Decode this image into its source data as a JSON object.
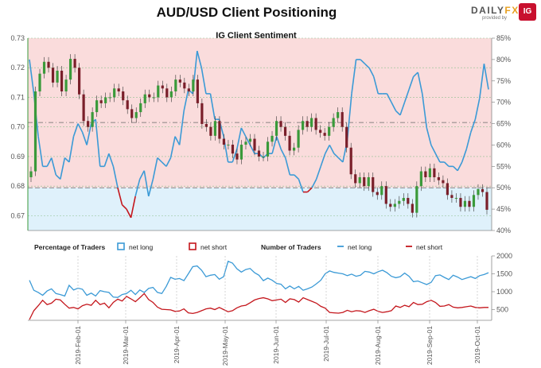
{
  "header": {
    "title": "AUD/USD Client Positioning",
    "logo_text_a": "DAILY",
    "logo_text_b": "FX",
    "logo_sub": "provided by",
    "logo_badge": "IG"
  },
  "colors": {
    "net_long": "#3b9ad6",
    "net_short": "#c4161c",
    "long_fill": "#dff1fb",
    "short_fill": "#fadcdc",
    "candle_up": "#3a9a3a",
    "candle_down": "#7a1f2a"
  },
  "chart_data": [
    {
      "type": "candlestick",
      "title": "IG Client Sentiment",
      "y_left": {
        "ticks": [
          "0.67",
          "0.68",
          "0.69",
          "0.70",
          "0.71",
          "0.72",
          "0.73"
        ],
        "range": [
          0.665,
          0.73
        ]
      },
      "y_right": {
        "ticks": [
          "40%",
          "45%",
          "50%",
          "55%",
          "60%",
          "65%",
          "70%",
          "75%",
          "80%",
          "85%"
        ],
        "range": [
          40,
          85
        ]
      },
      "x_dates": [
        "2019-Feb-01",
        "2019-Mar-01",
        "2019-Apr-01",
        "2019-May-01",
        "2019-Jun-01",
        "2019-Jul-01",
        "2019-Aug-01",
        "2019-Sep-01",
        "2019-Oct-01"
      ],
      "price_close": [
        0.685,
        0.712,
        0.718,
        0.722,
        0.72,
        0.715,
        0.719,
        0.712,
        0.716,
        0.723,
        0.72,
        0.711,
        0.702,
        0.7,
        0.705,
        0.709,
        0.708,
        0.71,
        0.71,
        0.713,
        0.712,
        0.709,
        0.706,
        0.703,
        0.705,
        0.708,
        0.711,
        0.71,
        0.71,
        0.714,
        0.713,
        0.71,
        0.712,
        0.716,
        0.715,
        0.713,
        0.712,
        0.716,
        0.708,
        0.701,
        0.7,
        0.697,
        0.702,
        0.696,
        0.694,
        0.694,
        0.691,
        0.689,
        0.694,
        0.695,
        0.696,
        0.692,
        0.69,
        0.69,
        0.695,
        0.697,
        0.702,
        0.7,
        0.697,
        0.692,
        0.693,
        0.699,
        0.702,
        0.7,
        0.703,
        0.699,
        0.698,
        0.697,
        0.7,
        0.703,
        0.705,
        0.7,
        0.693,
        0.684,
        0.681,
        0.683,
        0.68,
        0.683,
        0.678,
        0.677,
        0.68,
        0.674,
        0.673,
        0.674,
        0.675,
        0.676,
        0.674,
        0.671,
        0.68,
        0.685,
        0.683,
        0.686,
        0.683,
        0.682,
        0.681,
        0.677,
        0.676,
        0.676,
        0.673,
        0.675,
        0.673,
        0.677,
        0.679,
        0.678,
        0.672
      ],
      "long_pct": [
        80,
        72,
        62,
        55,
        55,
        57,
        53,
        52,
        57,
        56,
        62,
        65,
        63,
        60,
        65,
        66,
        55,
        55,
        58,
        55,
        50,
        46,
        45,
        43,
        48,
        52,
        54,
        48,
        52,
        57,
        56,
        55,
        57,
        62,
        60,
        68,
        73,
        72,
        82,
        78,
        72,
        72,
        66,
        66,
        62,
        56,
        56,
        59,
        64,
        62,
        60,
        58,
        58,
        57,
        58,
        58,
        62,
        59,
        57,
        53,
        53,
        52,
        49,
        49,
        50,
        52,
        55,
        58,
        60,
        58,
        57,
        56,
        61,
        72,
        80,
        80,
        79,
        78,
        76,
        72,
        72,
        72,
        70,
        68,
        67,
        70,
        73,
        76,
        77,
        72,
        64,
        60,
        58,
        56,
        56,
        55,
        55,
        54,
        56,
        59,
        63,
        66,
        71,
        79,
        73
      ],
      "series": [
        {
          "name": "net long"
        },
        {
          "name": "net short"
        }
      ],
      "legend": "hidden"
    },
    {
      "type": "line",
      "title": "",
      "y_right": {
        "ticks": [
          "500",
          "1000",
          "1500",
          "2000"
        ],
        "range": [
          200,
          2000
        ]
      },
      "legend_left": {
        "label": "Percentage of Traders",
        "items": [
          "net long",
          "net short"
        ]
      },
      "legend_right": {
        "label": "Number of Traders",
        "items": [
          "net long",
          "net short"
        ]
      },
      "series": [
        {
          "name": "net long",
          "values": [
            1320,
            1040,
            980,
            900,
            1020,
            1080,
            950,
            920,
            880,
            1180,
            1050,
            1100,
            1070,
            900,
            960,
            880,
            1030,
            1000,
            980,
            850,
            840,
            920,
            950,
            1040,
            920,
            1050,
            980,
            1090,
            1120,
            980,
            950,
            1150,
            1400,
            1350,
            1370,
            1310,
            1500,
            1700,
            1720,
            1600,
            1420,
            1460,
            1480,
            1350,
            1420,
            1850,
            1800,
            1640,
            1550,
            1620,
            1650,
            1530,
            1460,
            1310,
            1380,
            1320,
            1230,
            1210,
            1080,
            1160,
            1080,
            1150,
            1040,
            1080,
            1130,
            1220,
            1320,
            1500,
            1580,
            1540,
            1520,
            1500,
            1450,
            1490,
            1430,
            1460,
            1570,
            1550,
            1500,
            1560,
            1600,
            1530,
            1430,
            1390,
            1420,
            1520,
            1430,
            1280,
            1300,
            1250,
            1200,
            1260,
            1450,
            1470,
            1400,
            1340,
            1460,
            1410,
            1340,
            1380,
            1420,
            1370,
            1450,
            1480,
            1530
          ]
        },
        {
          "name": "net short",
          "values": [
            220,
            470,
            610,
            760,
            640,
            680,
            790,
            770,
            650,
            540,
            560,
            520,
            610,
            650,
            620,
            760,
            640,
            680,
            550,
            700,
            790,
            740,
            870,
            800,
            720,
            830,
            950,
            780,
            700,
            570,
            510,
            500,
            490,
            450,
            460,
            520,
            410,
            390,
            420,
            470,
            520,
            540,
            500,
            560,
            500,
            440,
            470,
            550,
            600,
            620,
            690,
            770,
            810,
            830,
            800,
            750,
            770,
            790,
            700,
            800,
            780,
            710,
            830,
            780,
            730,
            680,
            590,
            540,
            420,
            410,
            400,
            420,
            480,
            440,
            470,
            460,
            420,
            470,
            510,
            450,
            420,
            440,
            470,
            600,
            560,
            620,
            580,
            700,
            640,
            650,
            720,
            760,
            700,
            590,
            600,
            640,
            570,
            550,
            560,
            580,
            600,
            560,
            550,
            560,
            560
          ]
        }
      ]
    }
  ]
}
